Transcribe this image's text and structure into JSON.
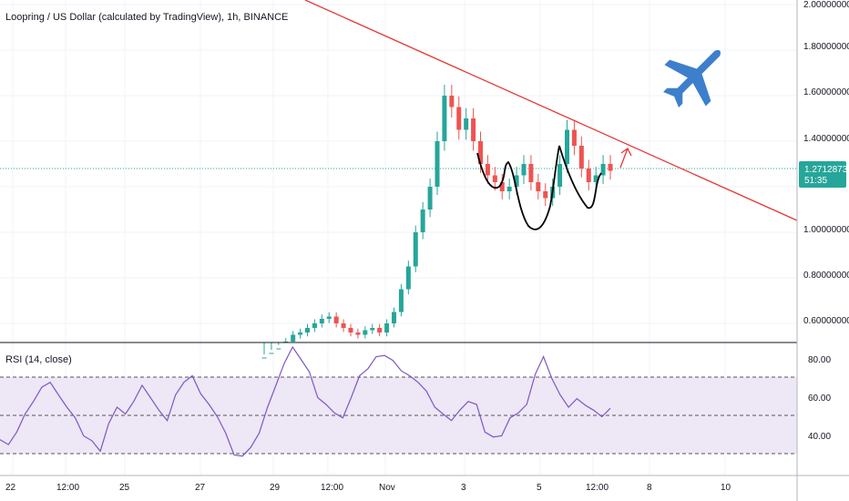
{
  "chart_data": [
    {
      "type": "candlestick",
      "title": "Loopring / US Dollar (calculated by TradingView), 1h, BINANCE",
      "price_axis_ticks": [
        "2.00000000",
        "1.80000000",
        "1.60000000",
        "1.40000000",
        "1.00000000",
        "0.80000000",
        "0.60000000"
      ],
      "ylim": [
        0.5,
        2.0
      ],
      "current_price": "1.27128738",
      "countdown": "51:35",
      "x_ticks": [
        "22",
        "12:00",
        "25",
        "27",
        "29",
        "12:00",
        "Nov",
        "3",
        "5",
        "12:00",
        "8",
        "10"
      ],
      "candle_closes": [
        0.45,
        0.47,
        0.49,
        0.52,
        0.55,
        0.56,
        0.58,
        0.6,
        0.62,
        0.63,
        0.6,
        0.58,
        0.56,
        0.55,
        0.57,
        0.58,
        0.56,
        0.6,
        0.65,
        0.75,
        0.85,
        1.0,
        1.1,
        1.2,
        1.4,
        1.6,
        1.55,
        1.45,
        1.5,
        1.4,
        1.3,
        1.25,
        1.22,
        1.18,
        1.2,
        1.25,
        1.3,
        1.22,
        1.18,
        1.15,
        1.2,
        1.3,
        1.45,
        1.38,
        1.28,
        1.22,
        1.25,
        1.3,
        1.27
      ],
      "trendline": {
        "start_price": 2.1,
        "end_price": 1.05
      },
      "colors": {
        "up": "#26a69a",
        "down": "#ef5350",
        "trendline": "#e53935",
        "price_tag": "#26a69a",
        "pattern": "#000000",
        "plane_icon": "#3d7fcc"
      }
    },
    {
      "type": "line",
      "title": "RSI (14, close)",
      "y_ticks": [
        "80.00",
        "60.00",
        "40.00"
      ],
      "ylim": [
        20,
        90
      ],
      "bands": [
        30,
        70
      ],
      "midline": 50,
      "values": [
        38,
        34,
        42,
        50,
        58,
        64,
        68,
        60,
        55,
        48,
        40,
        36,
        32,
        45,
        55,
        50,
        58,
        65,
        60,
        52,
        48,
        60,
        68,
        70,
        62,
        55,
        50,
        40,
        30,
        28,
        34,
        40,
        55,
        65,
        78,
        85,
        80,
        72,
        60,
        55,
        52,
        48,
        60,
        70,
        75,
        80,
        82,
        78,
        74,
        70,
        68,
        62,
        55,
        50,
        48,
        52,
        58,
        55,
        42,
        38,
        40,
        48,
        52,
        55,
        72,
        80,
        70,
        60,
        55,
        58,
        56,
        52,
        50,
        53
      ],
      "colors": {
        "line": "#7e57c2",
        "band_fill": "#ede7f6",
        "band_line": "#555555"
      }
    }
  ]
}
